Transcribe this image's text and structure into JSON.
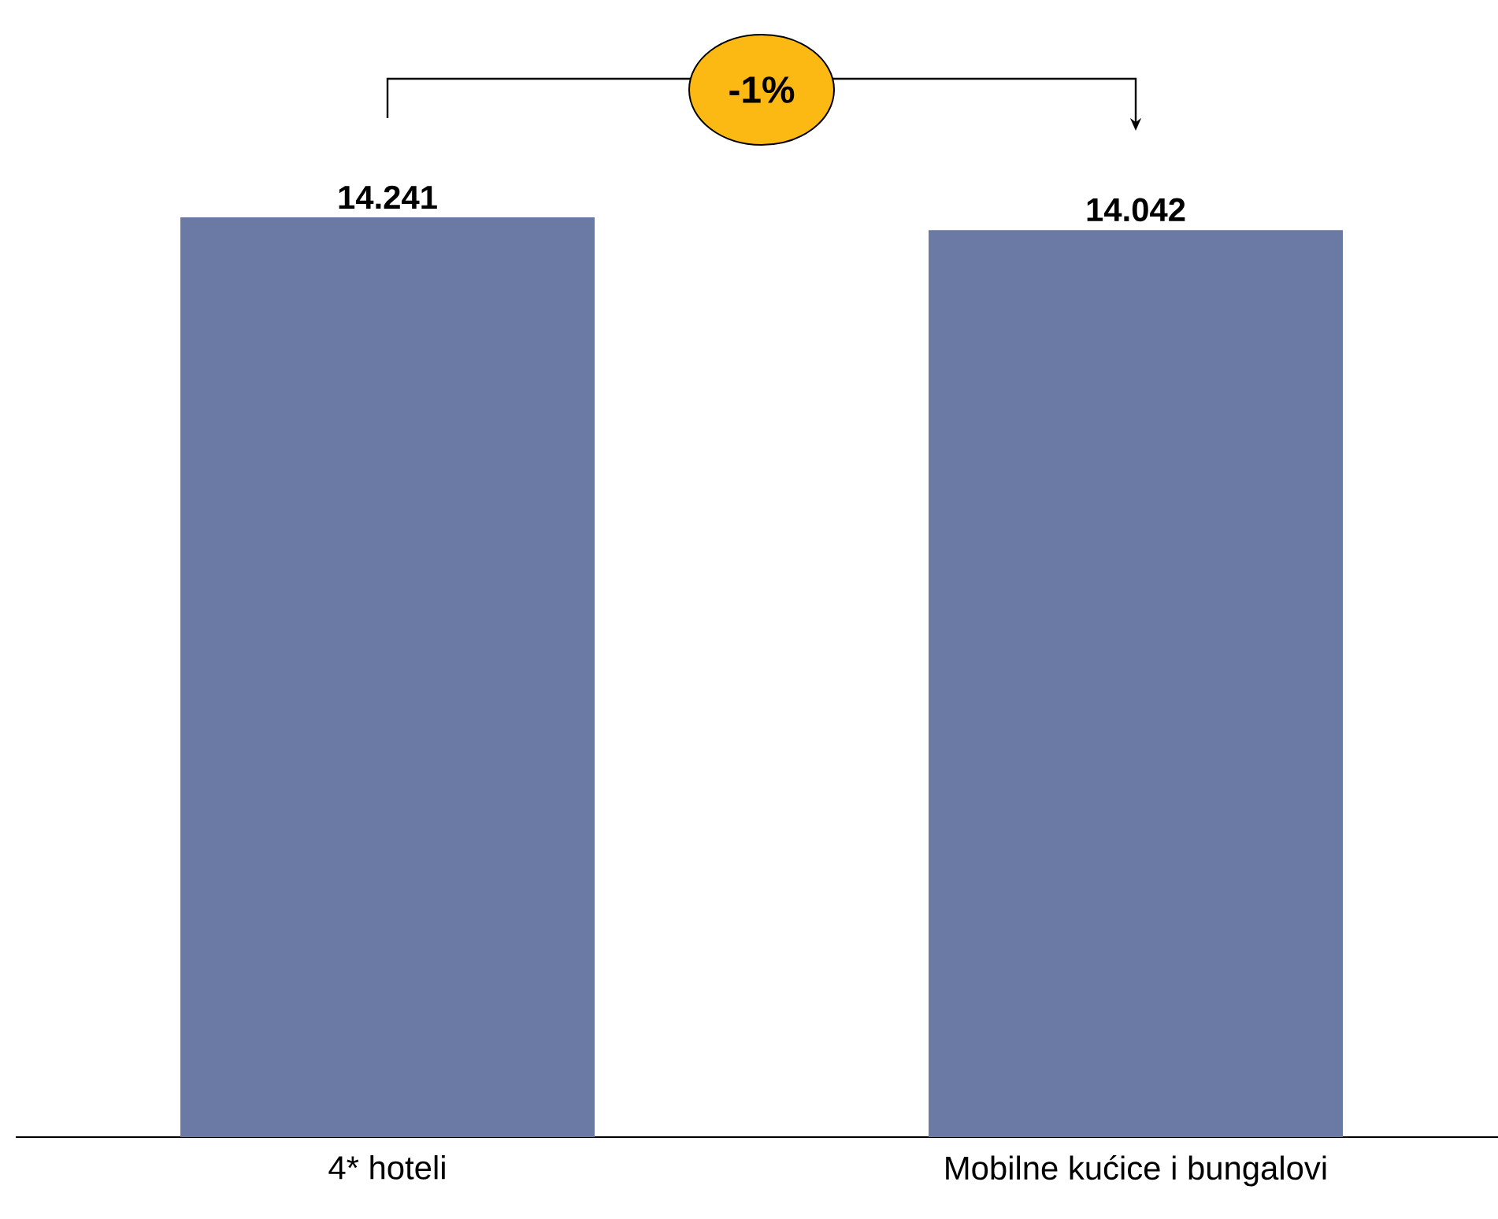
{
  "chart_data": {
    "type": "bar",
    "categories": [
      "4* hoteli",
      "Mobilne kućice i bungalovi"
    ],
    "values": [
      14241,
      14042
    ],
    "value_labels": [
      "14.241",
      "14.042"
    ],
    "color": "#6a7aa4",
    "annotations": [
      "-1%"
    ]
  }
}
